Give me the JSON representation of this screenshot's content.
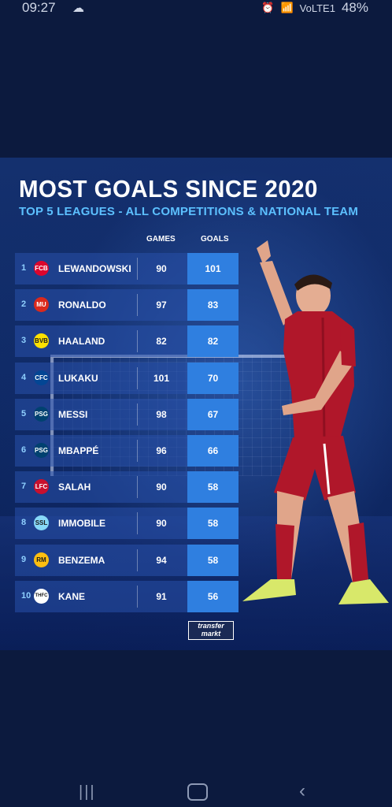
{
  "status_bar": {
    "time": "09:27",
    "cloud_icon": "cloud-sun-icon",
    "right_text": "VoLTE1",
    "battery": "48%"
  },
  "infographic": {
    "title": "MOST GOALS SINCE 2020",
    "subtitle": "TOP 5 LEAGUES - ALL COMPETITIONS & NATIONAL TEAM",
    "columns": {
      "games": "GAMES",
      "goals": "GOALS"
    },
    "rows": [
      {
        "rank": "1",
        "crest": "FCB",
        "crest_color": "#dc052d",
        "name": "LEWANDOWSKI",
        "games": "90",
        "goals": "101"
      },
      {
        "rank": "2",
        "crest": "MU",
        "crest_color": "#da291c",
        "name": "RONALDO",
        "games": "97",
        "goals": "83"
      },
      {
        "rank": "3",
        "crest": "BVB",
        "crest_color": "#fde100",
        "name": "HAALAND",
        "games": "82",
        "goals": "82"
      },
      {
        "rank": "4",
        "crest": "CFC",
        "crest_color": "#034694",
        "name": "LUKAKU",
        "games": "101",
        "goals": "70"
      },
      {
        "rank": "5",
        "crest": "PSG",
        "crest_color": "#004170",
        "name": "MESSI",
        "games": "98",
        "goals": "67"
      },
      {
        "rank": "6",
        "crest": "PSG",
        "crest_color": "#004170",
        "name": "MBAPPÉ",
        "games": "96",
        "goals": "66"
      },
      {
        "rank": "7",
        "crest": "LFC",
        "crest_color": "#c8102e",
        "name": "SALAH",
        "games": "90",
        "goals": "58"
      },
      {
        "rank": "8",
        "crest": "SSL",
        "crest_color": "#87d8f7",
        "name": "IMMOBILE",
        "games": "90",
        "goals": "58"
      },
      {
        "rank": "9",
        "crest": "RM",
        "crest_color": "#febe10",
        "name": "BENZEMA",
        "games": "94",
        "goals": "58"
      },
      {
        "rank": "10",
        "crest": "THFC",
        "crest_color": "#ffffff",
        "name": "KANE",
        "games": "91",
        "goals": "56"
      }
    ],
    "logo_line1": "transfer",
    "logo_line2": "markt"
  },
  "nav": {
    "recent_icon": "recent-apps-icon",
    "home_icon": "home-icon",
    "back_icon": "back-icon"
  }
}
